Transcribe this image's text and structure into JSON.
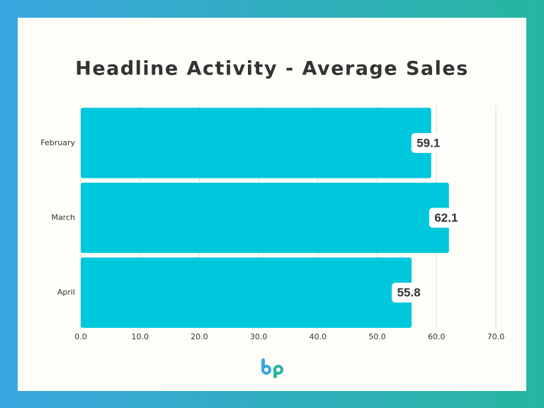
{
  "chart_data": {
    "type": "hbar",
    "title": "Headline Activity - Average Sales",
    "categories": [
      "February",
      "March",
      "April"
    ],
    "values": [
      59.1,
      62.1,
      55.8
    ],
    "color": "#00c8dc",
    "xlim": [
      0,
      70
    ],
    "xticks": [
      {
        "value": 0,
        "label": "0.0"
      },
      {
        "value": 10,
        "label": "10.0"
      },
      {
        "value": 20,
        "label": "20.0"
      },
      {
        "value": 30,
        "label": "30.0"
      },
      {
        "value": 40,
        "label": "40.0"
      },
      {
        "value": 50,
        "label": "50.0"
      },
      {
        "value": 60,
        "label": "60.0"
      },
      {
        "value": 70,
        "label": "70.0"
      }
    ],
    "grid": true
  }
}
